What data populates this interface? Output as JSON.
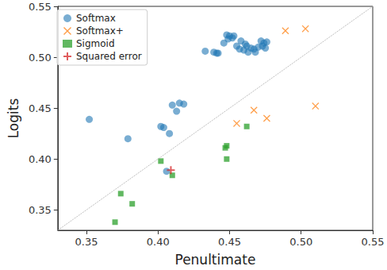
{
  "chart_data": {
    "type": "scatter",
    "x_label": "Penultimate",
    "y_label": "Logits",
    "xlim": [
      0.33,
      0.55
    ],
    "ylim": [
      0.33,
      0.55
    ],
    "xticks": [
      0.35,
      {
        "value": 0.4,
        "label": "0.40"
      },
      0.45,
      {
        "value": 0.5,
        "label": "0.50"
      },
      0.55
    ],
    "yticks": [
      0.35,
      {
        "value": 0.4,
        "label": "0.40"
      },
      0.45,
      {
        "value": 0.5,
        "label": "0.50"
      },
      0.55
    ],
    "grid": false,
    "legend": "top-left",
    "series": [
      {
        "name": "Softmax",
        "color": "#1f77b4",
        "marker": "circle",
        "x": [
          0.352,
          0.379,
          0.402,
          0.404,
          0.406,
          0.408,
          0.41,
          0.413,
          0.415,
          0.418,
          0.433,
          0.439,
          0.441,
          0.442,
          0.446,
          0.448,
          0.45,
          0.452,
          0.453,
          0.455,
          0.457,
          0.46,
          0.461,
          0.462,
          0.463,
          0.465,
          0.467,
          0.468,
          0.47,
          0.472,
          0.473,
          0.474,
          0.475,
          0.476,
          0.458,
          0.449
        ],
        "values": [
          0.439,
          0.42,
          0.432,
          0.431,
          0.388,
          0.425,
          0.453,
          0.447,
          0.455,
          0.454,
          0.506,
          0.505,
          0.504,
          0.504,
          0.514,
          0.522,
          0.521,
          0.519,
          0.521,
          0.511,
          0.508,
          0.507,
          0.513,
          0.511,
          0.505,
          0.509,
          0.508,
          0.505,
          0.51,
          0.516,
          0.511,
          0.514,
          0.509,
          0.515,
          0.516,
          0.518
        ]
      },
      {
        "name": "Softmax+",
        "color": "#ff7f0e",
        "marker": "x",
        "x": [
          0.455,
          0.467,
          0.476,
          0.489,
          0.503,
          0.51
        ],
        "values": [
          0.435,
          0.448,
          0.44,
          0.526,
          0.528,
          0.452
        ]
      },
      {
        "name": "Sigmoid",
        "color": "#2ca02c",
        "marker": "square",
        "x": [
          0.37,
          0.374,
          0.382,
          0.402,
          0.41,
          0.447,
          0.448,
          0.448,
          0.462
        ],
        "values": [
          0.338,
          0.366,
          0.356,
          0.398,
          0.384,
          0.411,
          0.413,
          0.4,
          0.432
        ]
      },
      {
        "name": "Squared error",
        "color": "#d62728",
        "marker": "plus",
        "x": [
          0.409
        ],
        "values": [
          0.389
        ]
      }
    ]
  }
}
